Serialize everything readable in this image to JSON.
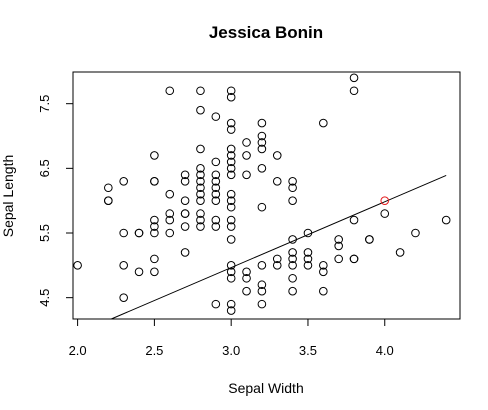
{
  "chart_data": {
    "type": "scatter",
    "title": "Jessica Bonin",
    "xlabel": "Sepal Width",
    "ylabel": "Sepal Length",
    "xlim": [
      1.97,
      4.49
    ],
    "ylim": [
      4.17,
      7.99
    ],
    "xticks": [
      2.0,
      2.5,
      3.0,
      3.5,
      4.0
    ],
    "xtick_labels": [
      "2.0",
      "2.5",
      "3.0",
      "3.5",
      "4.0"
    ],
    "yticks": [
      4.5,
      5.5,
      6.5,
      7.5
    ],
    "ytick_labels": [
      "4.5",
      "5.5",
      "6.5",
      "7.5"
    ],
    "grid": false,
    "point_color": "#000000",
    "highlight_color": "#e41a1c",
    "fit_line": {
      "x": [
        2.17,
        4.4
      ],
      "y": [
        4.12,
        6.39
      ]
    },
    "highlight_points": [
      {
        "x": 4.0,
        "y": 6.0
      }
    ],
    "points": [
      {
        "x": 2.0,
        "y": 5.0
      },
      {
        "x": 2.2,
        "y": 6.2
      },
      {
        "x": 2.2,
        "y": 6.0
      },
      {
        "x": 2.2,
        "y": 6.0
      },
      {
        "x": 2.3,
        "y": 6.3
      },
      {
        "x": 2.3,
        "y": 5.5
      },
      {
        "x": 2.3,
        "y": 5.0
      },
      {
        "x": 2.3,
        "y": 4.5
      },
      {
        "x": 2.4,
        "y": 5.5
      },
      {
        "x": 2.4,
        "y": 5.5
      },
      {
        "x": 2.4,
        "y": 4.9
      },
      {
        "x": 2.5,
        "y": 6.7
      },
      {
        "x": 2.5,
        "y": 6.3
      },
      {
        "x": 2.5,
        "y": 6.3
      },
      {
        "x": 2.5,
        "y": 5.7
      },
      {
        "x": 2.5,
        "y": 5.6
      },
      {
        "x": 2.5,
        "y": 5.5
      },
      {
        "x": 2.5,
        "y": 5.1
      },
      {
        "x": 2.5,
        "y": 4.9
      },
      {
        "x": 2.6,
        "y": 7.7
      },
      {
        "x": 2.6,
        "y": 6.1
      },
      {
        "x": 2.6,
        "y": 5.8
      },
      {
        "x": 2.6,
        "y": 5.7
      },
      {
        "x": 2.6,
        "y": 5.5
      },
      {
        "x": 2.7,
        "y": 6.4
      },
      {
        "x": 2.7,
        "y": 6.3
      },
      {
        "x": 2.7,
        "y": 6.0
      },
      {
        "x": 2.7,
        "y": 5.8
      },
      {
        "x": 2.7,
        "y": 5.8
      },
      {
        "x": 2.7,
        "y": 5.6
      },
      {
        "x": 2.7,
        "y": 5.2
      },
      {
        "x": 2.8,
        "y": 7.7
      },
      {
        "x": 2.8,
        "y": 7.4
      },
      {
        "x": 2.8,
        "y": 6.8
      },
      {
        "x": 2.8,
        "y": 6.5
      },
      {
        "x": 2.8,
        "y": 6.4
      },
      {
        "x": 2.8,
        "y": 6.3
      },
      {
        "x": 2.8,
        "y": 6.2
      },
      {
        "x": 2.8,
        "y": 6.1
      },
      {
        "x": 2.8,
        "y": 6.0
      },
      {
        "x": 2.8,
        "y": 5.8
      },
      {
        "x": 2.8,
        "y": 5.7
      },
      {
        "x": 2.8,
        "y": 5.6
      },
      {
        "x": 2.9,
        "y": 7.3
      },
      {
        "x": 2.9,
        "y": 6.6
      },
      {
        "x": 2.9,
        "y": 6.4
      },
      {
        "x": 2.9,
        "y": 6.3
      },
      {
        "x": 2.9,
        "y": 6.2
      },
      {
        "x": 2.9,
        "y": 6.1
      },
      {
        "x": 2.9,
        "y": 6.0
      },
      {
        "x": 2.9,
        "y": 5.7
      },
      {
        "x": 2.9,
        "y": 5.6
      },
      {
        "x": 2.9,
        "y": 4.4
      },
      {
        "x": 3.0,
        "y": 7.7
      },
      {
        "x": 3.0,
        "y": 7.6
      },
      {
        "x": 3.0,
        "y": 7.2
      },
      {
        "x": 3.0,
        "y": 7.1
      },
      {
        "x": 3.0,
        "y": 6.8
      },
      {
        "x": 3.0,
        "y": 6.7
      },
      {
        "x": 3.0,
        "y": 6.6
      },
      {
        "x": 3.0,
        "y": 6.5
      },
      {
        "x": 3.0,
        "y": 6.4
      },
      {
        "x": 3.0,
        "y": 6.1
      },
      {
        "x": 3.0,
        "y": 6.0
      },
      {
        "x": 3.0,
        "y": 5.9
      },
      {
        "x": 3.0,
        "y": 5.7
      },
      {
        "x": 3.0,
        "y": 5.6
      },
      {
        "x": 3.0,
        "y": 5.4
      },
      {
        "x": 3.0,
        "y": 5.0
      },
      {
        "x": 3.0,
        "y": 4.9
      },
      {
        "x": 3.0,
        "y": 4.8
      },
      {
        "x": 3.0,
        "y": 4.4
      },
      {
        "x": 3.0,
        "y": 4.3
      },
      {
        "x": 3.1,
        "y": 6.9
      },
      {
        "x": 3.1,
        "y": 6.7
      },
      {
        "x": 3.1,
        "y": 6.4
      },
      {
        "x": 3.1,
        "y": 4.9
      },
      {
        "x": 3.1,
        "y": 4.8
      },
      {
        "x": 3.1,
        "y": 4.6
      },
      {
        "x": 3.2,
        "y": 7.2
      },
      {
        "x": 3.2,
        "y": 7.0
      },
      {
        "x": 3.2,
        "y": 6.9
      },
      {
        "x": 3.2,
        "y": 6.8
      },
      {
        "x": 3.2,
        "y": 6.5
      },
      {
        "x": 3.2,
        "y": 5.9
      },
      {
        "x": 3.2,
        "y": 5.0
      },
      {
        "x": 3.2,
        "y": 4.7
      },
      {
        "x": 3.2,
        "y": 4.6
      },
      {
        "x": 3.2,
        "y": 4.4
      },
      {
        "x": 3.3,
        "y": 6.7
      },
      {
        "x": 3.3,
        "y": 6.3
      },
      {
        "x": 3.3,
        "y": 5.1
      },
      {
        "x": 3.3,
        "y": 5.0
      },
      {
        "x": 3.4,
        "y": 6.3
      },
      {
        "x": 3.4,
        "y": 6.2
      },
      {
        "x": 3.4,
        "y": 6.0
      },
      {
        "x": 3.4,
        "y": 5.4
      },
      {
        "x": 3.4,
        "y": 5.2
      },
      {
        "x": 3.4,
        "y": 5.1
      },
      {
        "x": 3.4,
        "y": 5.0
      },
      {
        "x": 3.4,
        "y": 4.8
      },
      {
        "x": 3.4,
        "y": 4.6
      },
      {
        "x": 3.5,
        "y": 5.5
      },
      {
        "x": 3.5,
        "y": 5.2
      },
      {
        "x": 3.5,
        "y": 5.1
      },
      {
        "x": 3.5,
        "y": 5.0
      },
      {
        "x": 3.6,
        "y": 7.2
      },
      {
        "x": 3.6,
        "y": 5.0
      },
      {
        "x": 3.6,
        "y": 4.9
      },
      {
        "x": 3.6,
        "y": 4.6
      },
      {
        "x": 3.7,
        "y": 5.4
      },
      {
        "x": 3.7,
        "y": 5.3
      },
      {
        "x": 3.7,
        "y": 5.1
      },
      {
        "x": 3.8,
        "y": 7.9
      },
      {
        "x": 3.8,
        "y": 7.7
      },
      {
        "x": 3.8,
        "y": 5.7
      },
      {
        "x": 3.8,
        "y": 5.1
      },
      {
        "x": 3.8,
        "y": 5.1
      },
      {
        "x": 3.9,
        "y": 5.4
      },
      {
        "x": 3.9,
        "y": 5.4
      },
      {
        "x": 4.0,
        "y": 5.8
      },
      {
        "x": 4.1,
        "y": 5.2
      },
      {
        "x": 4.2,
        "y": 5.5
      },
      {
        "x": 4.4,
        "y": 5.7
      }
    ]
  }
}
